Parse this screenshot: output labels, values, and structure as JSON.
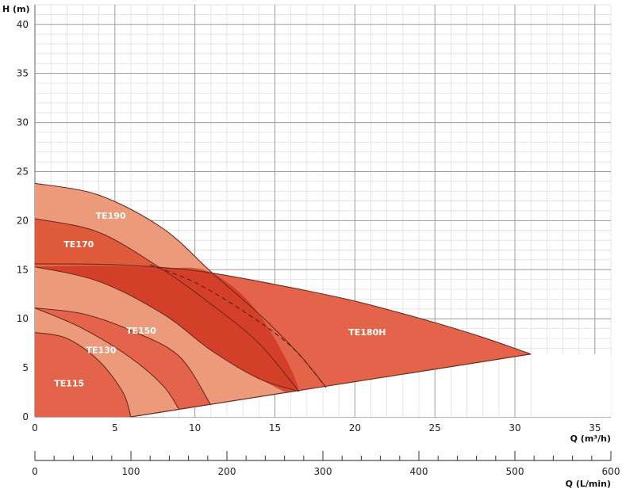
{
  "chart_data": {
    "type": "area",
    "title": "",
    "ylabel": "H (m)",
    "xlabel": "Q (m³/h)",
    "x2label": "Q (L/min)",
    "xlim": [
      0,
      36
    ],
    "ylim": [
      0,
      42
    ],
    "x2lim": [
      0,
      600
    ],
    "x_ticks": [
      0,
      5,
      10,
      15,
      20,
      25,
      30,
      35
    ],
    "y_ticks": [
      0,
      5,
      10,
      15,
      20,
      25,
      30,
      35,
      40
    ],
    "x2_ticks": [
      0,
      100,
      200,
      300,
      400,
      500,
      600
    ],
    "grid": true,
    "operating_limit_line": [
      [
        6,
        0
      ],
      [
        31,
        6.4
      ]
    ],
    "series": [
      {
        "name": "TE190",
        "color": "#eb9a7c",
        "curve": [
          [
            0,
            23.8
          ],
          [
            4,
            22.6
          ],
          [
            8,
            19.2
          ],
          [
            11,
            14.8
          ],
          [
            14,
            10.5
          ],
          [
            16.5,
            6.4
          ],
          [
            18.2,
            3.0
          ]
        ],
        "label_at": [
          3.8,
          20.2
        ]
      },
      {
        "name": "TE170",
        "color": "#e05a3c",
        "curve": [
          [
            0,
            20.2
          ],
          [
            4,
            18.8
          ],
          [
            8,
            15.0
          ],
          [
            11,
            11.5
          ],
          [
            14,
            7.5
          ],
          [
            16.5,
            2.6
          ]
        ],
        "label_at": [
          1.8,
          17.3
        ]
      },
      {
        "name": "TE180H",
        "color": "#e3644a",
        "curve": [
          [
            0,
            15.6
          ],
          [
            5,
            15.5
          ],
          [
            10,
            14.9
          ],
          [
            15,
            13.5
          ],
          [
            20,
            11.8
          ],
          [
            25,
            9.6
          ],
          [
            28,
            8.1
          ],
          [
            31,
            6.4
          ]
        ],
        "label_at": [
          19.6,
          8.3
        ]
      },
      {
        "name": "TE150",
        "color": "#eb9a7c",
        "curve": [
          [
            0,
            15.3
          ],
          [
            4,
            13.8
          ],
          [
            8,
            10.5
          ],
          [
            11,
            6.8
          ],
          [
            14,
            3.9
          ],
          [
            16.5,
            2.6
          ]
        ],
        "label_at": [
          5.7,
          8.5
        ]
      },
      {
        "name": "TE130",
        "color": "#e3644a",
        "curve": [
          [
            0,
            11.1
          ],
          [
            3,
            10.5
          ],
          [
            6,
            8.8
          ],
          [
            9,
            6.2
          ],
          [
            11,
            1.2
          ]
        ],
        "label_at": [
          3.2,
          6.5
        ]
      },
      {
        "name": "TE115",
        "color": "#eb9a7c",
        "curve": [
          [
            0,
            11.1
          ],
          [
            3,
            9.0
          ],
          [
            6,
            6.0
          ],
          [
            8,
            3.2
          ],
          [
            9,
            0.8
          ]
        ],
        "label_at": [
          1.2,
          3.1
        ]
      },
      {
        "name": "",
        "color": "#e3644a",
        "curve": [
          [
            0,
            8.6
          ],
          [
            2,
            8.0
          ],
          [
            4,
            5.7
          ],
          [
            5.5,
            2.5
          ],
          [
            6,
            0
          ]
        ],
        "label_at": null
      }
    ],
    "dashed_curves": [
      [
        [
          7.2,
          15.5
        ],
        [
          10,
          13.7
        ],
        [
          13,
          10.8
        ],
        [
          16,
          7.2
        ],
        [
          18.2,
          3.0
        ]
      ]
    ]
  }
}
